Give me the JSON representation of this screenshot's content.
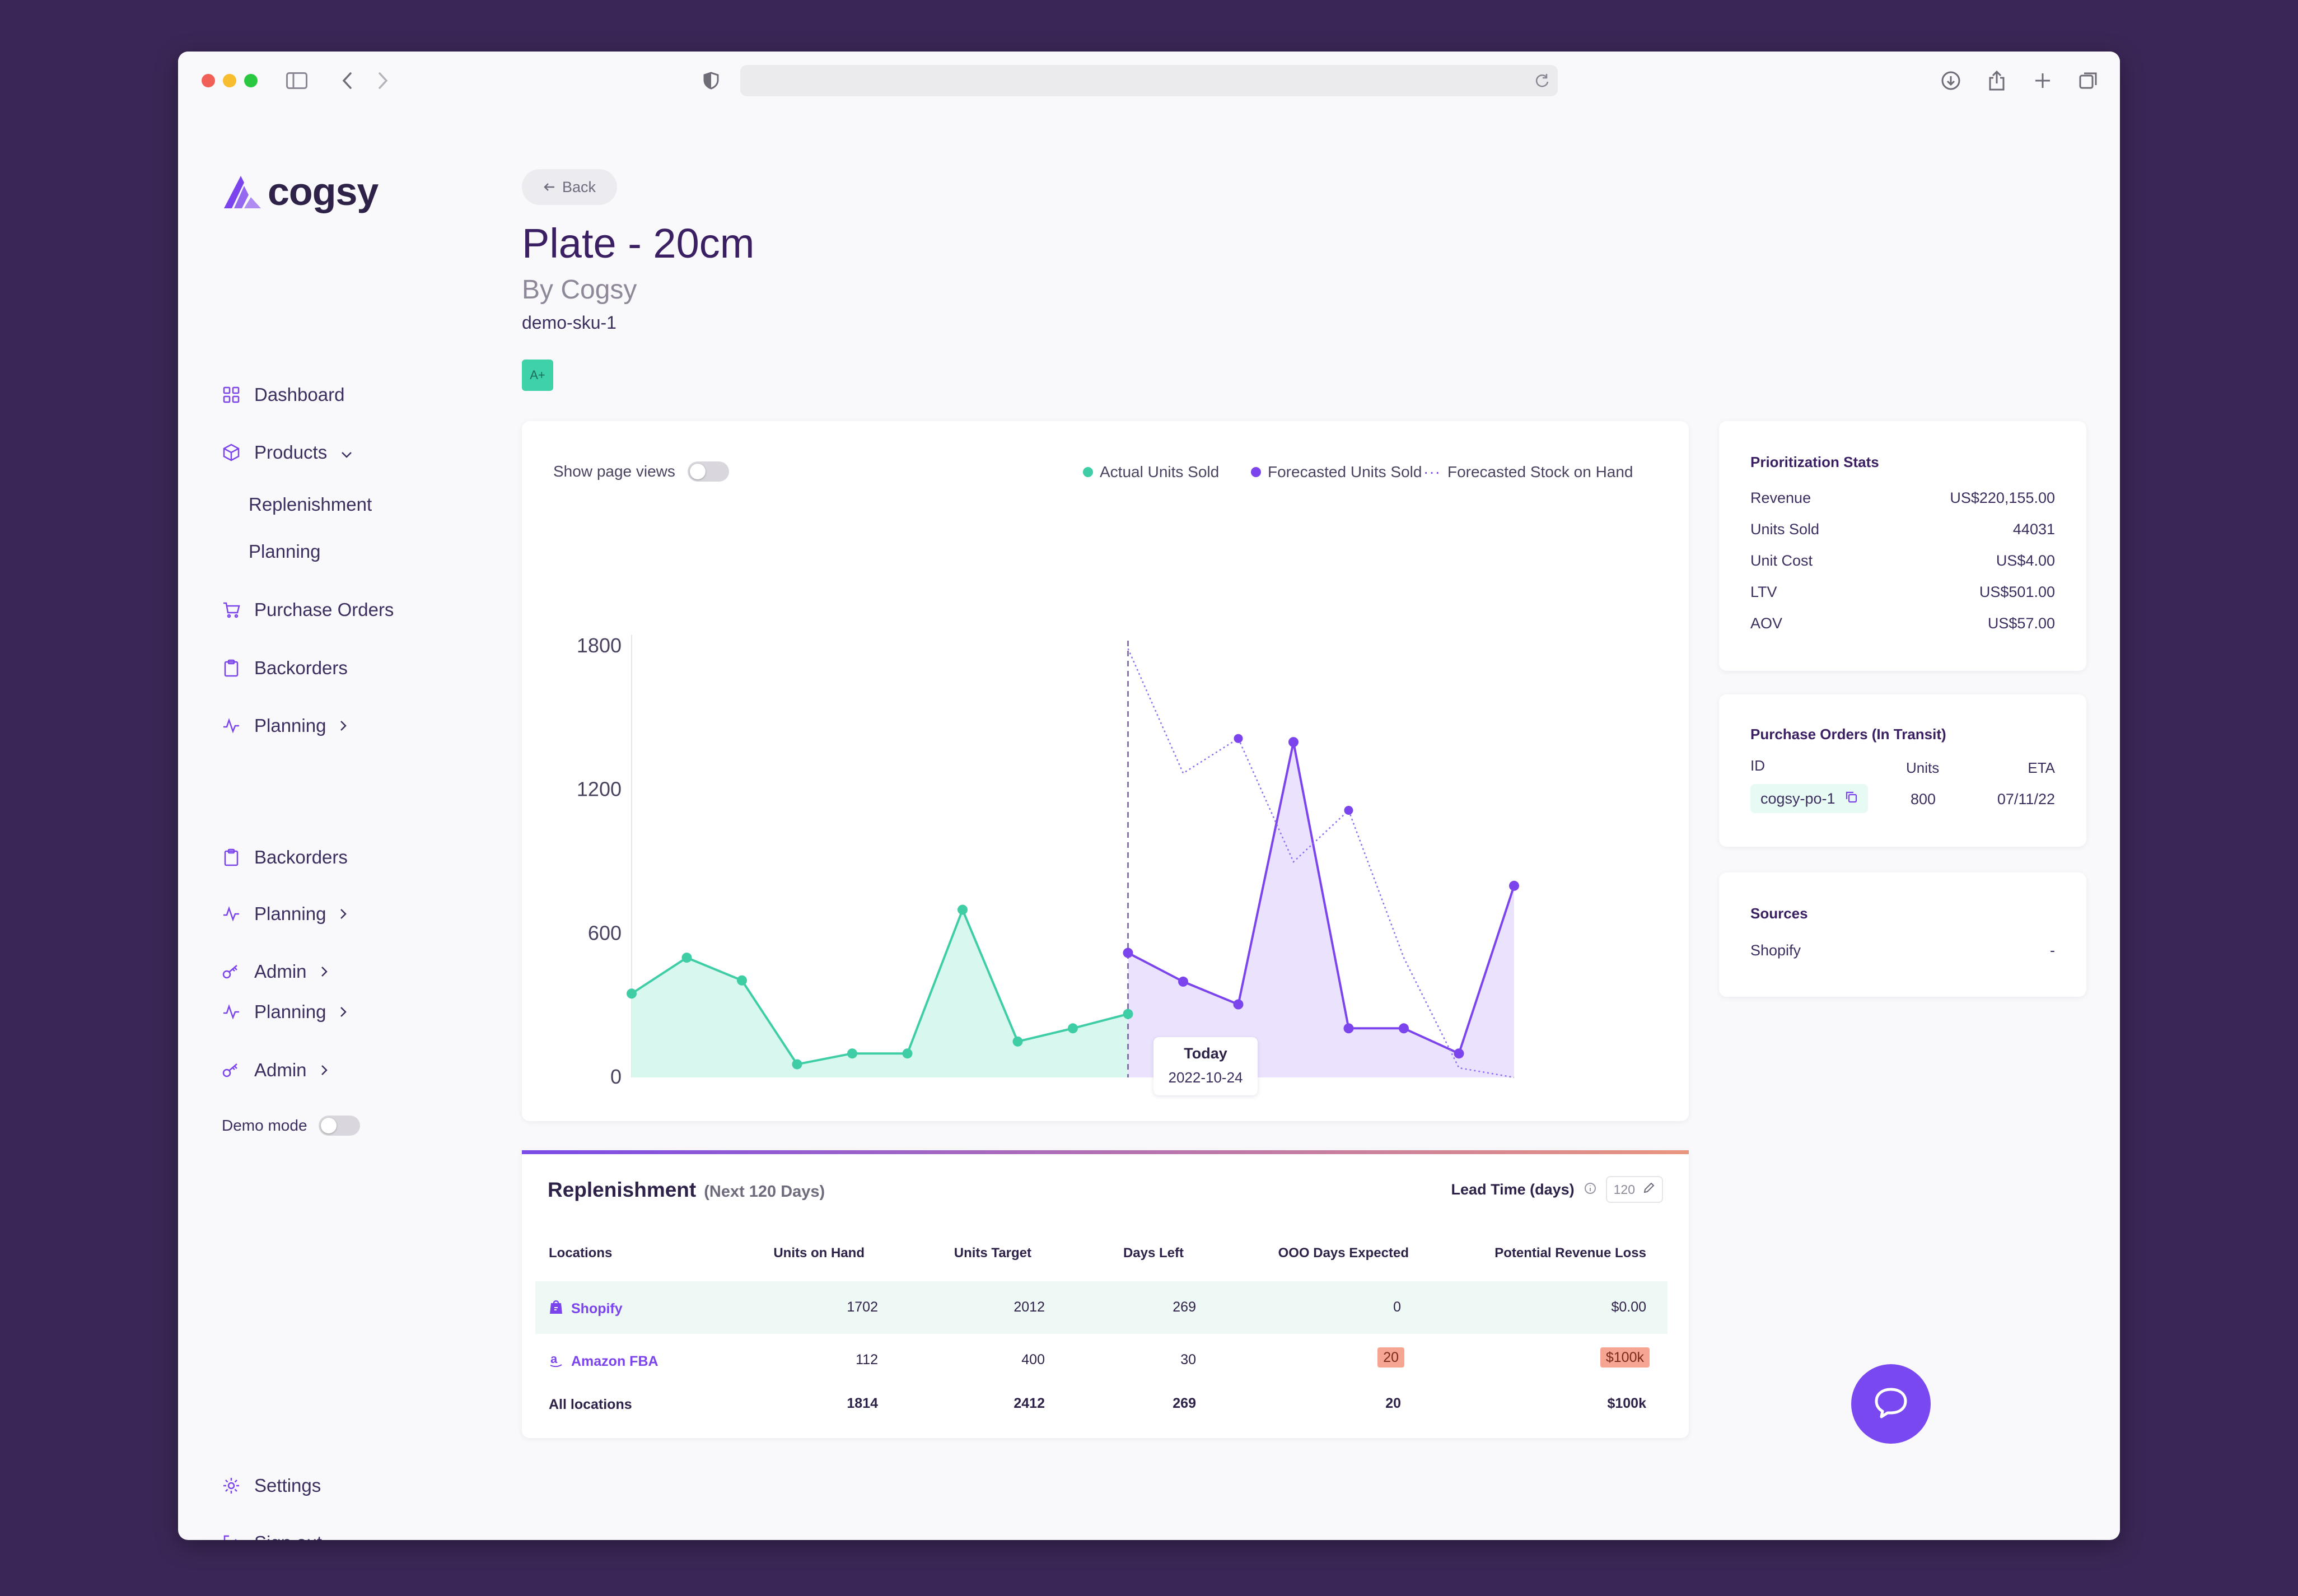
{
  "brand": {
    "logo_text": "cogsy"
  },
  "sidebar": {
    "items": [
      {
        "label": "Dashboard",
        "icon": "grid-icon"
      },
      {
        "label": "Products",
        "icon": "box-icon"
      },
      {
        "label": "Replenishment"
      },
      {
        "label": "Planning"
      },
      {
        "label": "Purchase Orders",
        "icon": "cart-icon"
      },
      {
        "label": "Backorders",
        "icon": "clipboard-icon"
      },
      {
        "label": "Planning",
        "icon": "pulse-icon"
      },
      {
        "label": "Backorders",
        "icon": "clipboard-icon"
      },
      {
        "label": "Planning",
        "icon": "pulse-icon"
      },
      {
        "label": "Admin",
        "icon": "key-icon"
      },
      {
        "label": "Planning",
        "icon": "pulse-icon"
      },
      {
        "label": "Admin",
        "icon": "key-icon"
      }
    ],
    "demo_mode": "Demo mode",
    "settings": "Settings",
    "sign_out": "Sign out"
  },
  "product": {
    "back_label": "Back",
    "title": "Plate - 20cm",
    "brand": "By Cogsy",
    "sku": "demo-sku-1",
    "grade": "A+"
  },
  "chart_panel": {
    "show_page_views": "Show page views",
    "legend": [
      "Actual Units Sold",
      "Forecasted Units Sold",
      "Forecasted Stock on Hand"
    ],
    "today_label": "Today",
    "today_date": "2022-10-24"
  },
  "chart_data": {
    "type": "area",
    "ylim": [
      0,
      1800
    ],
    "yticks": [
      "1800",
      "1200",
      "600",
      "0"
    ],
    "series": [
      {
        "name": "Actual Units Sold",
        "color": "#3fcda6",
        "x": [
          0,
          1,
          2,
          3,
          4,
          5,
          6,
          7,
          8,
          9
        ],
        "values": [
          350,
          500,
          405,
          55,
          100,
          100,
          700,
          150,
          205,
          265
        ]
      },
      {
        "name": "Forecasted Units Sold",
        "color": "#7b44ec",
        "x": [
          9,
          10,
          11,
          12,
          13,
          14,
          15,
          16
        ],
        "values": [
          520,
          400,
          305,
          1400,
          205,
          205,
          100,
          800
        ]
      },
      {
        "name": "Forecasted Stock on Hand",
        "color": "#8f6df0",
        "x": [
          9,
          10,
          11,
          12,
          13,
          14,
          15,
          16
        ],
        "values": [
          1790,
          1270,
          1415,
          900,
          1115,
          500,
          40,
          0
        ]
      }
    ],
    "today_x": 9
  },
  "stats": {
    "title": "Prioritization Stats",
    "rows": [
      {
        "label": "Revenue",
        "value": "US$220,155.00"
      },
      {
        "label": "Units Sold",
        "value": "44031"
      },
      {
        "label": "Unit Cost",
        "value": "US$4.00"
      },
      {
        "label": "LTV",
        "value": "US$501.00"
      },
      {
        "label": "AOV",
        "value": "US$57.00"
      }
    ]
  },
  "purchase_orders": {
    "title": "Purchase Orders (In Transit)",
    "headers": [
      "ID",
      "Units",
      "ETA"
    ],
    "row": {
      "id": "cogsy-po-1",
      "units": "800",
      "eta": "07/11/22"
    }
  },
  "sources": {
    "title": "Sources",
    "row": {
      "label": "Shopify",
      "value": "-"
    }
  },
  "replenishment": {
    "title": "Replenishment",
    "subtitle": "(Next 120 Days)",
    "lead_time_label": "Lead Time (days)",
    "lead_time_value": "120",
    "headers": [
      "Locations",
      "Units on Hand",
      "Units Target",
      "Days Left",
      "OOO Days Expected",
      "Potential Revenue Loss"
    ],
    "rows": [
      {
        "location": "Shopify",
        "on_hand": "1702",
        "target": "2012",
        "days_left": "269",
        "ooo": "0",
        "loss": "$0.00"
      },
      {
        "location": "Amazon FBA",
        "on_hand": "112",
        "target": "400",
        "days_left": "30",
        "ooo": "20",
        "loss": "$100k"
      }
    ],
    "total": {
      "location": "All locations",
      "on_hand": "1814",
      "target": "2412",
      "days_left": "269",
      "ooo": "20",
      "loss": "$100k"
    }
  }
}
